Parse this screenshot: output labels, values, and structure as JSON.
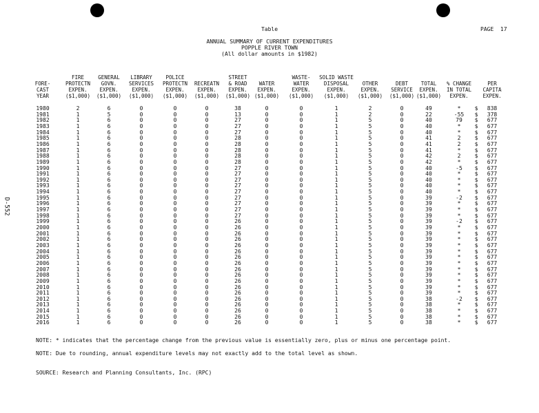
{
  "header": {
    "label": "Table",
    "page": "PAGE  17"
  },
  "title": {
    "line1": "ANNUAL SUMMARY OF CURRENT EXPENDITURES",
    "line2": "POPPLE RIVER TOWN",
    "line3": "(All dollar amounts in $1982)"
  },
  "side_label": "D-552",
  "columns": [
    "\nFORE-\nCAST\nYEAR",
    "FIRE\nPROTECTN\nEXPEN.\n($1,000)",
    "GENERAL\nGOVN.\nEXPEN.\n($1,000)",
    "LIBRARY\nSERVICES\nEXPEN.\n($1,000)",
    "POLICE\nPROTECTN\nEXPEN.\n($1,000)",
    "\nRECREATN\nEXPEN.\n($1,000)",
    "STREET\n& ROAD\nEXPEN.\n($1,000)",
    "\nWATER\nEXPEN.\n($1,000)",
    "WASTE-\nWATER\nEXPEN.\n($1,000)",
    "SOLID WASTE\nDISPOSAL\nEXPEN.\n($1,000)",
    "\nOTHER\nEXPEN.\n($1,000)",
    "\nDEBT\nSERVICE\n($1,000)",
    "\nTOTAL\nEXPEN.\n($1,000)",
    "\n% CHANGE\nIN TOTAL\nEXPEN.",
    "\nPER\nCAPITA\nEXPEN."
  ],
  "currency_symbol": "$",
  "rows": [
    [
      "1980",
      "2",
      "6",
      "0",
      "0",
      "0",
      "38",
      "0",
      "0",
      "1",
      "2",
      "0",
      "49",
      "*",
      "838"
    ],
    [
      "1981",
      "1",
      "5",
      "0",
      "0",
      "0",
      "13",
      "0",
      "0",
      "1",
      "2",
      "0",
      "22",
      "-55",
      "378"
    ],
    [
      "1982",
      "1",
      "6",
      "0",
      "0",
      "0",
      "27",
      "0",
      "0",
      "1",
      "5",
      "0",
      "40",
      "79",
      "677"
    ],
    [
      "1983",
      "1",
      "6",
      "0",
      "0",
      "0",
      "27",
      "0",
      "0",
      "1",
      "5",
      "0",
      "40",
      "*",
      "677"
    ],
    [
      "1984",
      "1",
      "6",
      "0",
      "0",
      "0",
      "27",
      "0",
      "0",
      "1",
      "5",
      "0",
      "40",
      "*",
      "677"
    ],
    [
      "1985",
      "1",
      "6",
      "0",
      "0",
      "0",
      "28",
      "0",
      "0",
      "1",
      "5",
      "0",
      "41",
      "2",
      "677"
    ],
    [
      "1986",
      "1",
      "6",
      "0",
      "0",
      "0",
      "28",
      "0",
      "0",
      "1",
      "5",
      "0",
      "41",
      "2",
      "677"
    ],
    [
      "1987",
      "1",
      "6",
      "0",
      "0",
      "0",
      "28",
      "0",
      "0",
      "1",
      "5",
      "0",
      "41",
      "*",
      "677"
    ],
    [
      "1988",
      "1",
      "6",
      "0",
      "0",
      "0",
      "28",
      "0",
      "0",
      "1",
      "5",
      "0",
      "42",
      "2",
      "677"
    ],
    [
      "1989",
      "1",
      "6",
      "0",
      "0",
      "0",
      "28",
      "0",
      "0",
      "1",
      "5",
      "0",
      "42",
      "*",
      "677"
    ],
    [
      "1990",
      "1",
      "6",
      "0",
      "0",
      "0",
      "27",
      "0",
      "0",
      "1",
      "5",
      "0",
      "40",
      "-5",
      "677"
    ],
    [
      "1991",
      "1",
      "6",
      "0",
      "0",
      "0",
      "27",
      "0",
      "0",
      "1",
      "5",
      "0",
      "40",
      "*",
      "677"
    ],
    [
      "1992",
      "1",
      "6",
      "0",
      "0",
      "0",
      "27",
      "0",
      "0",
      "1",
      "5",
      "0",
      "40",
      "*",
      "677"
    ],
    [
      "1993",
      "1",
      "6",
      "0",
      "0",
      "0",
      "27",
      "0",
      "0",
      "1",
      "5",
      "0",
      "40",
      "*",
      "677"
    ],
    [
      "1994",
      "1",
      "6",
      "0",
      "0",
      "0",
      "27",
      "0",
      "0",
      "1",
      "5",
      "0",
      "40",
      "*",
      "677"
    ],
    [
      "1995",
      "1",
      "6",
      "0",
      "0",
      "0",
      "27",
      "0",
      "0",
      "1",
      "5",
      "0",
      "39",
      "-2",
      "677"
    ],
    [
      "1996",
      "1",
      "6",
      "0",
      "0",
      "0",
      "27",
      "0",
      "0",
      "1",
      "5",
      "0",
      "39",
      "*",
      "677"
    ],
    [
      "1997",
      "1",
      "6",
      "0",
      "0",
      "0",
      "27",
      "0",
      "0",
      "1",
      "5",
      "0",
      "39",
      "*",
      "677"
    ],
    [
      "1998",
      "1",
      "6",
      "0",
      "0",
      "0",
      "27",
      "0",
      "0",
      "1",
      "5",
      "0",
      "39",
      "*",
      "677"
    ],
    [
      "1999",
      "1",
      "6",
      "0",
      "0",
      "0",
      "26",
      "0",
      "0",
      "1",
      "5",
      "0",
      "39",
      "-2",
      "677"
    ],
    [
      "2000",
      "1",
      "6",
      "0",
      "0",
      "0",
      "26",
      "0",
      "0",
      "1",
      "5",
      "0",
      "39",
      "*",
      "677"
    ],
    [
      "2001",
      "1",
      "6",
      "0",
      "0",
      "0",
      "26",
      "0",
      "0",
      "1",
      "5",
      "0",
      "39",
      "*",
      "677"
    ],
    [
      "2002",
      "1",
      "6",
      "0",
      "0",
      "0",
      "26",
      "0",
      "0",
      "1",
      "5",
      "0",
      "39",
      "*",
      "677"
    ],
    [
      "2003",
      "1",
      "6",
      "0",
      "0",
      "0",
      "26",
      "0",
      "0",
      "1",
      "5",
      "0",
      "39",
      "*",
      "677"
    ],
    [
      "2004",
      "1",
      "6",
      "0",
      "0",
      "0",
      "26",
      "0",
      "0",
      "1",
      "5",
      "0",
      "39",
      "*",
      "677"
    ],
    [
      "2005",
      "1",
      "6",
      "0",
      "0",
      "0",
      "26",
      "0",
      "0",
      "1",
      "5",
      "0",
      "39",
      "*",
      "677"
    ],
    [
      "2006",
      "1",
      "6",
      "0",
      "0",
      "0",
      "26",
      "0",
      "0",
      "1",
      "5",
      "0",
      "39",
      "*",
      "677"
    ],
    [
      "2007",
      "1",
      "6",
      "0",
      "0",
      "0",
      "26",
      "0",
      "0",
      "1",
      "5",
      "0",
      "39",
      "*",
      "677"
    ],
    [
      "2008",
      "1",
      "6",
      "0",
      "0",
      "0",
      "26",
      "0",
      "0",
      "1",
      "5",
      "0",
      "39",
      "*",
      "677"
    ],
    [
      "2009",
      "1",
      "6",
      "0",
      "0",
      "0",
      "26",
      "0",
      "0",
      "1",
      "5",
      "0",
      "39",
      "*",
      "677"
    ],
    [
      "2010",
      "1",
      "6",
      "0",
      "0",
      "0",
      "26",
      "0",
      "0",
      "1",
      "5",
      "0",
      "39",
      "*",
      "677"
    ],
    [
      "2011",
      "1",
      "6",
      "0",
      "0",
      "0",
      "26",
      "0",
      "0",
      "1",
      "5",
      "0",
      "39",
      "*",
      "677"
    ],
    [
      "2012",
      "1",
      "6",
      "0",
      "0",
      "0",
      "26",
      "0",
      "0",
      "1",
      "5",
      "0",
      "38",
      "-2",
      "677"
    ],
    [
      "2013",
      "1",
      "6",
      "0",
      "0",
      "0",
      "26",
      "0",
      "0",
      "1",
      "5",
      "0",
      "38",
      "*",
      "677"
    ],
    [
      "2014",
      "1",
      "6",
      "0",
      "0",
      "0",
      "26",
      "0",
      "0",
      "1",
      "5",
      "0",
      "38",
      "*",
      "677"
    ],
    [
      "2015",
      "1",
      "6",
      "0",
      "0",
      "0",
      "26",
      "0",
      "0",
      "1",
      "5",
      "0",
      "38",
      "*",
      "677"
    ],
    [
      "2016",
      "1",
      "6",
      "0",
      "0",
      "0",
      "26",
      "0",
      "0",
      "1",
      "5",
      "0",
      "38",
      "*",
      "677"
    ]
  ],
  "notes": {
    "note1": "NOTE: * indicates that the percentage change from the previous value is essentially zero, plus or minus one percentage point.",
    "note2": "NOTE: Due to rounding, annual expenditure levels may not exactly add to the total level as shown.",
    "source": "SOURCE: Research and Planning Consultants, Inc. (RPC)"
  }
}
